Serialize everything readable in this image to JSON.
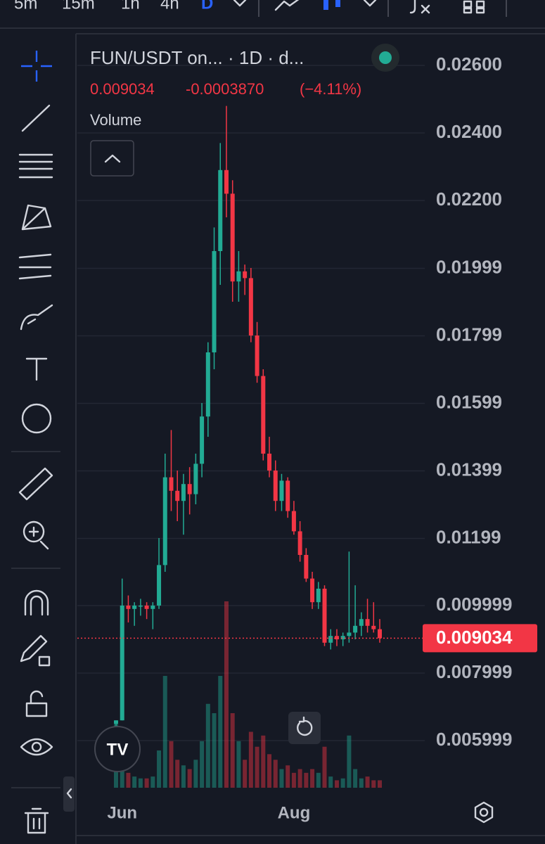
{
  "toolbar": {
    "intervals": [
      "5m",
      "15m",
      "1h",
      "4h",
      "D"
    ]
  },
  "chart_data": {
    "type": "candlestick",
    "title": "FUN/USDT on... · 1D · d...",
    "change": "-0.0003870",
    "change_pct": "(−4.11%)",
    "volume_label": "Volume",
    "up_color": "#22ab94",
    "down_color": "#f23645",
    "categories": [
      null,
      "Jun",
      null,
      null,
      null,
      null,
      null,
      null,
      null,
      null,
      null,
      null,
      null,
      null,
      null,
      null,
      null,
      null,
      null,
      null,
      null,
      null,
      null,
      null,
      null,
      null,
      null,
      null,
      null,
      "Aug",
      null,
      null,
      null,
      null,
      null,
      null,
      null,
      null,
      null,
      null,
      null,
      null,
      null,
      null
    ],
    "open": [
      0.0065,
      0.0066,
      0.01,
      0.0099,
      0.01,
      0.01,
      0.0099,
      0.01,
      0.0112,
      0.0138,
      0.0134,
      0.0131,
      0.0136,
      0.0133,
      0.0142,
      0.0156,
      0.0175,
      0.0205,
      0.0229,
      0.0222,
      0.0196,
      0.0199,
      0.0197,
      0.018,
      0.0168,
      0.0145,
      0.014,
      0.0131,
      0.0137,
      0.0128,
      0.0122,
      0.0115,
      0.0108,
      0.0101,
      0.0105,
      0.0089,
      0.0091,
      0.009,
      0.0091,
      0.0092,
      0.0094,
      0.0096,
      0.0094,
      0.0093
    ],
    "high": [
      0.0066,
      0.0108,
      0.0103,
      0.0101,
      0.0102,
      0.0101,
      0.0101,
      0.012,
      0.0145,
      0.0152,
      0.014,
      0.0139,
      0.0141,
      0.0145,
      0.016,
      0.0178,
      0.0212,
      0.0237,
      0.0248,
      0.0226,
      0.0205,
      0.0201,
      0.02,
      0.0184,
      0.017,
      0.015,
      0.0143,
      0.0139,
      0.0138,
      0.0131,
      0.0125,
      0.0117,
      0.011,
      0.0107,
      0.0106,
      0.0093,
      0.0093,
      0.0092,
      0.0116,
      0.0106,
      0.0098,
      0.0102,
      0.0101,
      0.0096
    ],
    "low": [
      0.0063,
      0.0066,
      0.0095,
      0.0094,
      0.0097,
      0.0096,
      0.0093,
      0.0099,
      0.011,
      0.0128,
      0.0125,
      0.0121,
      0.0127,
      0.013,
      0.0138,
      0.015,
      0.017,
      0.0195,
      0.0215,
      0.019,
      0.019,
      0.0192,
      0.0178,
      0.0166,
      0.0143,
      0.0138,
      0.0128,
      0.0128,
      0.0126,
      0.0121,
      0.0113,
      0.0107,
      0.0099,
      0.0099,
      0.0088,
      0.0087,
      0.0088,
      0.0088,
      0.0089,
      0.009,
      0.0091,
      0.0092,
      0.0092,
      0.0089
    ],
    "close": [
      0.0066,
      0.01,
      0.0099,
      0.01,
      0.01,
      0.0099,
      0.01,
      0.0112,
      0.0138,
      0.0134,
      0.0131,
      0.0136,
      0.0133,
      0.0142,
      0.0156,
      0.0175,
      0.0205,
      0.0229,
      0.0222,
      0.0196,
      0.0199,
      0.0197,
      0.018,
      0.0168,
      0.0145,
      0.014,
      0.0131,
      0.0137,
      0.0128,
      0.0122,
      0.0115,
      0.0108,
      0.0101,
      0.0105,
      0.0089,
      0.0091,
      0.009,
      0.0091,
      0.0092,
      0.0094,
      0.0096,
      0.0094,
      0.0093,
      0.009034
    ],
    "volume": [
      35,
      10,
      8,
      6,
      5,
      5,
      6,
      20,
      60,
      25,
      15,
      12,
      10,
      15,
      25,
      45,
      40,
      60,
      100,
      40,
      25,
      15,
      30,
      22,
      28,
      18,
      15,
      10,
      12,
      8,
      10,
      8,
      10,
      8,
      22,
      6,
      4,
      5,
      28,
      10,
      5,
      6,
      4,
      4
    ],
    "ylim": [
      0.0046,
      0.0269
    ],
    "yticks": [
      {
        "value": 0.026,
        "label": "0.02600"
      },
      {
        "value": 0.024,
        "label": "0.02400"
      },
      {
        "value": 0.022,
        "label": "0.02200"
      },
      0.01999,
      0.01799,
      0.01599,
      0.01399,
      0.01199,
      0.009999,
      0.007999,
      0.005999
    ],
    "grid": true
  }
}
